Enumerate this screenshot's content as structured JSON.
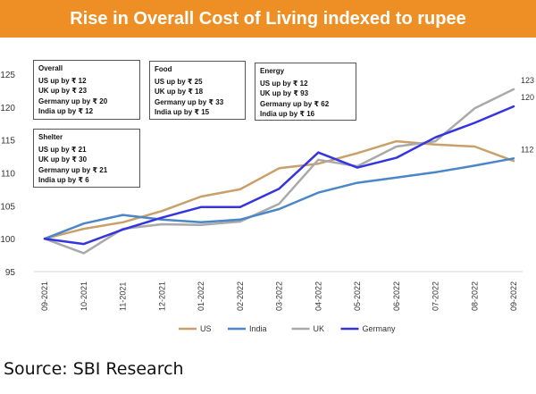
{
  "chart_data": {
    "type": "line",
    "title": "Rise in Overall Cost of Living indexed to rupee",
    "categories": [
      "09-2021",
      "10-2021",
      "11-2021",
      "12-2021",
      "01-2022",
      "02-2022",
      "03-2022",
      "04-2022",
      "05-2022",
      "06-2022",
      "07-2022",
      "08-2022",
      "09-2022"
    ],
    "ylim": [
      95,
      125
    ],
    "yticks": [
      95,
      100,
      105,
      110,
      115,
      120,
      125
    ],
    "series": [
      {
        "name": "US",
        "color": "#c9a06a",
        "values": [
          100,
          101.5,
          102.5,
          104.2,
          106.4,
          107.5,
          110.7,
          111.4,
          113.0,
          114.8,
          114.3,
          114.0,
          111.8
        ]
      },
      {
        "name": "India",
        "color": "#4a86c8",
        "values": [
          100,
          102.3,
          103.6,
          102.9,
          102.5,
          102.9,
          104.5,
          107.0,
          108.5,
          109.3,
          110.1,
          111.1,
          112.2
        ]
      },
      {
        "name": "UK",
        "color": "#a9a9a9",
        "values": [
          100,
          97.8,
          101.5,
          102.2,
          102.1,
          102.6,
          105.3,
          112.0,
          111.0,
          114.0,
          114.8,
          119.8,
          122.7
        ]
      },
      {
        "name": "Germany",
        "color": "#3434e0",
        "values": [
          100,
          99.2,
          101.4,
          103.2,
          104.8,
          104.8,
          107.6,
          113.1,
          110.8,
          112.3,
          115.4,
          117.6,
          120.1
        ]
      }
    ],
    "end_labels": [
      "123",
      "120",
      "112"
    ]
  },
  "annotations": [
    {
      "title": "Overall",
      "lines": [
        "US up by ₹ 12",
        "UK up by ₹ 23",
        "Germany up by ₹ 20",
        "India  up by ₹ 12"
      ]
    },
    {
      "title": "Food",
      "lines": [
        "US up by ₹ 25",
        "UK up by ₹ 18",
        "Germany up by ₹ 33",
        "India up by ₹ 15"
      ]
    },
    {
      "title": "Energy",
      "lines": [
        "US up by ₹ 12",
        "UK up by ₹ 93",
        "Germany up by ₹ 62",
        "India up by ₹ 16"
      ]
    },
    {
      "title": "Shelter",
      "lines": [
        "US up by ₹ 21",
        "UK up by ₹ 30",
        "Germany up by ₹ 21",
        " India up by ₹ 6"
      ]
    }
  ],
  "source": "Source: SBI Research"
}
